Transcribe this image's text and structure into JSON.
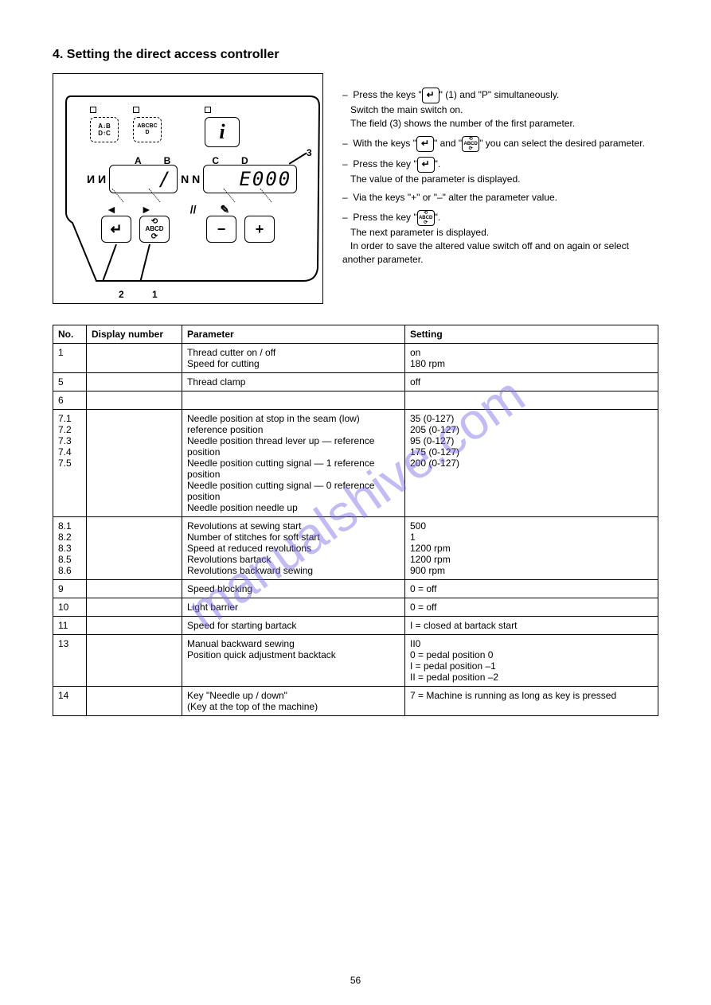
{
  "title": "4. Setting the direct access controller",
  "diagram": {
    "stitch_icon1_top": "A↓B",
    "stitch_icon1_bot": "D↑C",
    "stitch_icon2_top": "ABCBC",
    "stitch_icon2_bot": "D",
    "letters": [
      "A",
      "B",
      "C",
      "D"
    ],
    "nn_first": "N\nN",
    "lcd_left": "/",
    "lcd_right": "E000",
    "nn_second": "N\nN",
    "below_syms": [
      "◄",
      "►",
      "//",
      "✎"
    ],
    "enter_sym": "↵",
    "abcd_top": "⟲",
    "abcd_mid": "ABCD",
    "abcd_bot": "⟳",
    "minus": "−",
    "plus": "+",
    "callouts": {
      "c3": "3",
      "c2": "2",
      "c1": "1"
    }
  },
  "right": {
    "p1_a": "Press the keys \"",
    "p1_b": "\" (1) and \"P\" simultaneously.",
    "p1_c": "Switch the main switch on.",
    "p1_d": "The field (3) shows the number of the first parameter.",
    "dash": "–",
    "p2_a": "With the keys \"",
    "p2_b": "\" and \"",
    "p2_c": "\" you can select the desired parameter.",
    "p3_a": "Press the key \"",
    "p3_b": "\".",
    "p3_c": "The value of the parameter is displayed.",
    "p4_a": "Via the keys \"+\" or \"–\" alter the parameter value.",
    "p5_a": "Press the key \"",
    "p5_b": "\".",
    "p5_c": "The next parameter is displayed.",
    "p5_d": "In order to save the altered value switch off and on again or select another parameter."
  },
  "table": {
    "headers": [
      "No.",
      "Display number",
      "Parameter",
      "Setting"
    ],
    "rows": [
      [
        "1",
        "",
        "Thread cutter on / off\nSpeed for cutting",
        "on\n180 rpm"
      ],
      [
        "5",
        "",
        "Thread clamp",
        "off"
      ],
      [
        "6",
        "",
        "",
        ""
      ],
      [
        "7.1\n7.2\n7.3\n7.4\n7.5",
        "",
        "Needle position at stop in the seam (low) reference position\nNeedle position thread lever up — reference position\nNeedle position cutting signal — 1 reference position\nNeedle position cutting signal — 0 reference position\nNeedle position needle up",
        "35   (0-127)\n205 (0-127)\n95   (0-127)\n175 (0-127)\n200 (0-127)"
      ],
      [
        "8.1\n8.2\n8.3\n8.5\n8.6",
        "",
        "Revolutions at sewing start\nNumber of stitches for soft start\nSpeed at reduced revolutions\nRevolutions bartack\nRevolutions backward sewing",
        "500\n1\n1200 rpm\n1200 rpm\n900 rpm"
      ],
      [
        "9",
        "",
        "Speed blocking",
        "0 = off"
      ],
      [
        "10",
        "",
        "Light barrier",
        "0 = off"
      ],
      [
        "11",
        "",
        "Speed for starting bartack",
        "I = closed at bartack start"
      ],
      [
        "13",
        "",
        "Manual backward sewing\nPosition quick adjustment backtack",
        "II0\n0 = pedal position  0\nI = pedal position –1\nII = pedal position –2"
      ],
      [
        "14",
        "",
        "Key \"Needle up / down\"\n(Key at the top of the machine)",
        "7 = Machine is running as long as key is pressed"
      ]
    ]
  },
  "page_number": "56"
}
